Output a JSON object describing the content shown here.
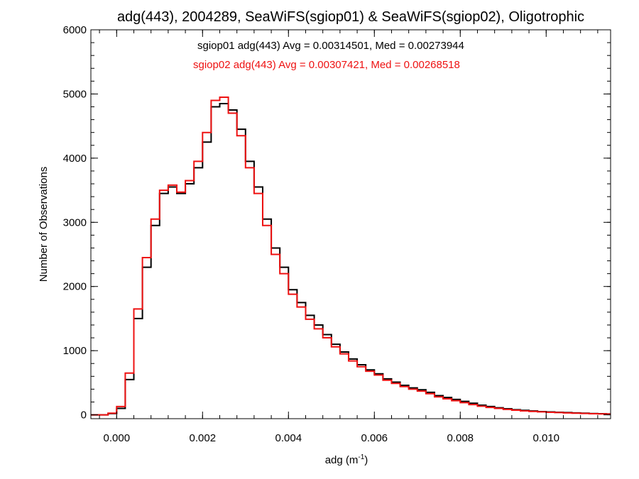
{
  "chart_data": {
    "type": "line",
    "step": true,
    "title": "adg(443), 2004289, SeaWiFS(sgiop01) & SeaWiFS(sgiop02), Oligotrophic",
    "xlabel_main": "adg (m",
    "xlabel_sup": "-1",
    "xlabel_end": ")",
    "ylabel": "Number of Observations",
    "xlim": [
      -0.0006,
      0.0115
    ],
    "ylim": [
      -60,
      6000
    ],
    "xticks": [
      0.0,
      0.002,
      0.004,
      0.006,
      0.008,
      0.01
    ],
    "xtick_labels": [
      "0.000",
      "0.002",
      "0.004",
      "0.006",
      "0.008",
      "0.010"
    ],
    "yticks": [
      0,
      1000,
      2000,
      3000,
      4000,
      5000,
      6000
    ],
    "ytick_labels": [
      "0",
      "1000",
      "2000",
      "3000",
      "4000",
      "5000",
      "6000"
    ],
    "grid": false,
    "legend_position": "top-center",
    "x": [
      -0.0006,
      -0.0004,
      -0.0002,
      0.0,
      0.0002,
      0.0004,
      0.0006,
      0.0008,
      0.001,
      0.0012,
      0.0014,
      0.0016,
      0.0018,
      0.002,
      0.0022,
      0.0024,
      0.0026,
      0.0028,
      0.003,
      0.0032,
      0.0034,
      0.0036,
      0.0038,
      0.004,
      0.0042,
      0.0044,
      0.0046,
      0.0048,
      0.005,
      0.0052,
      0.0054,
      0.0056,
      0.0058,
      0.006,
      0.0062,
      0.0064,
      0.0066,
      0.0068,
      0.007,
      0.0072,
      0.0074,
      0.0076,
      0.0078,
      0.008,
      0.0082,
      0.0084,
      0.0086,
      0.0088,
      0.009,
      0.0092,
      0.0094,
      0.0096,
      0.0098,
      0.01,
      0.0102,
      0.0104,
      0.0106,
      0.0108,
      0.011,
      0.0112,
      0.0114
    ],
    "series": [
      {
        "name": "sgiop01",
        "color": "#000000",
        "legend": "sgiop01 adg(443) Avg = 0.00314501, Med = 0.00273944",
        "values": [
          0,
          0,
          20,
          100,
          550,
          1500,
          2300,
          2950,
          3450,
          3550,
          3450,
          3600,
          3850,
          4250,
          4800,
          4850,
          4750,
          4450,
          3950,
          3550,
          3050,
          2600,
          2300,
          1950,
          1750,
          1550,
          1400,
          1250,
          1100,
          980,
          870,
          780,
          700,
          640,
          560,
          510,
          460,
          420,
          390,
          350,
          300,
          270,
          240,
          210,
          180,
          150,
          130,
          110,
          95,
          80,
          70,
          60,
          50,
          45,
          40,
          35,
          30,
          25,
          20,
          18,
          15
        ]
      },
      {
        "name": "sgiop02",
        "color": "#ee1111",
        "legend": "sgiop02 adg(443) Avg = 0.00307421, Med = 0.00268518",
        "values": [
          0,
          0,
          25,
          130,
          650,
          1650,
          2450,
          3050,
          3500,
          3580,
          3470,
          3650,
          3950,
          4400,
          4900,
          4950,
          4700,
          4350,
          3850,
          3450,
          2950,
          2500,
          2200,
          1880,
          1680,
          1490,
          1340,
          1200,
          1060,
          950,
          840,
          750,
          680,
          620,
          540,
          490,
          440,
          400,
          370,
          330,
          280,
          250,
          220,
          190,
          160,
          135,
          115,
          100,
          85,
          72,
          62,
          53,
          46,
          40,
          35,
          30,
          26,
          22,
          18,
          15,
          12
        ]
      }
    ]
  }
}
